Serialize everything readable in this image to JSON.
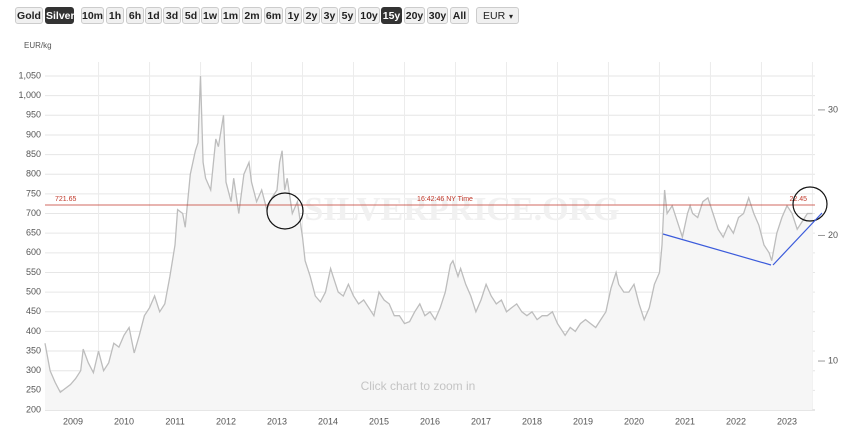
{
  "toolbar": {
    "metals": [
      "Gold",
      "Silver"
    ],
    "ranges": [
      "10m",
      "1h",
      "6h",
      "1d",
      "3d",
      "5d",
      "1w",
      "1m",
      "2m",
      "6m",
      "1y",
      "2y",
      "3y",
      "5y",
      "10y",
      "15y",
      "20y",
      "30y",
      "All"
    ],
    "currency": "EUR"
  },
  "chart_data": {
    "type": "line",
    "y_label": "EUR/kg",
    "watermark": "SILVERPRICE.ORG",
    "hint": "Click chart to zoom in",
    "price_line": {
      "value": 721.65,
      "y2_value": 22.45,
      "time": "16:42:46 NY Time",
      "color": "#c0392b"
    },
    "xlim": [
      2008.45,
      2023.55
    ],
    "xticks": [
      2009,
      2010,
      2011,
      2012,
      2013,
      2014,
      2015,
      2016,
      2017,
      2018,
      2019,
      2020,
      2021,
      2022,
      2023
    ],
    "ylim": [
      200,
      1050
    ],
    "yticks": [
      200,
      250,
      300,
      350,
      400,
      450,
      500,
      550,
      600,
      650,
      700,
      750,
      800,
      850,
      900,
      950,
      {
        "value": 1000,
        "label": "1,000"
      },
      {
        "value": 1050,
        "label": "1,050"
      }
    ],
    "y2lim": [
      6.1,
      32.7
    ],
    "y2ticks": [
      10,
      20,
      30
    ],
    "grid": true,
    "x": [
      2008.45,
      2008.55,
      2008.65,
      2008.75,
      2008.85,
      2008.95,
      2009.05,
      2009.15,
      2009.2,
      2009.3,
      2009.4,
      2009.5,
      2009.6,
      2009.7,
      2009.8,
      2009.9,
      2010.0,
      2010.1,
      2010.2,
      2010.3,
      2010.4,
      2010.5,
      2010.6,
      2010.7,
      2010.8,
      2010.9,
      2011.0,
      2011.05,
      2011.15,
      2011.2,
      2011.3,
      2011.4,
      2011.45,
      2011.5,
      2011.55,
      2011.6,
      2011.7,
      2011.8,
      2011.85,
      2011.95,
      2012.0,
      2012.1,
      2012.15,
      2012.25,
      2012.35,
      2012.45,
      2012.5,
      2012.6,
      2012.7,
      2012.8,
      2012.9,
      2013.0,
      2013.05,
      2013.1,
      2013.15,
      2013.2,
      2013.3,
      2013.4,
      2013.5,
      2013.55,
      2013.65,
      2013.75,
      2013.85,
      2013.95,
      2014.05,
      2014.1,
      2014.2,
      2014.3,
      2014.4,
      2014.5,
      2014.6,
      2014.7,
      2014.8,
      2014.9,
      2015.0,
      2015.1,
      2015.2,
      2015.3,
      2015.4,
      2015.5,
      2015.6,
      2015.7,
      2015.8,
      2015.9,
      2016.0,
      2016.1,
      2016.2,
      2016.3,
      2016.4,
      2016.45,
      2016.55,
      2016.6,
      2016.7,
      2016.8,
      2016.9,
      2017.0,
      2017.1,
      2017.2,
      2017.3,
      2017.4,
      2017.5,
      2017.6,
      2017.7,
      2017.8,
      2017.9,
      2018.0,
      2018.1,
      2018.2,
      2018.3,
      2018.4,
      2018.5,
      2018.6,
      2018.65,
      2018.75,
      2018.85,
      2018.95,
      2019.05,
      2019.15,
      2019.25,
      2019.35,
      2019.45,
      2019.55,
      2019.65,
      2019.7,
      2019.8,
      2019.9,
      2020.0,
      2020.1,
      2020.2,
      2020.3,
      2020.4,
      2020.5,
      2020.55,
      2020.6,
      2020.65,
      2020.75,
      2020.85,
      2020.95,
      2021.05,
      2021.1,
      2021.15,
      2021.25,
      2021.35,
      2021.45,
      2021.55,
      2021.65,
      2021.75,
      2021.85,
      2021.95,
      2022.05,
      2022.15,
      2022.25,
      2022.35,
      2022.45,
      2022.55,
      2022.65,
      2022.7,
      2022.8,
      2022.9,
      2023.0,
      2023.1,
      2023.2,
      2023.3,
      2023.4,
      2023.5
    ],
    "series": [
      {
        "color": "#bdbdbd",
        "fill": "#f6f6f6",
        "values": [
          370,
          300,
          270,
          245,
          255,
          265,
          280,
          300,
          355,
          320,
          295,
          350,
          300,
          320,
          370,
          360,
          390,
          410,
          345,
          390,
          440,
          460,
          490,
          450,
          470,
          540,
          620,
          710,
          700,
          665,
          800,
          860,
          880,
          1050,
          830,
          790,
          760,
          890,
          870,
          950,
          780,
          730,
          790,
          700,
          800,
          830,
          780,
          730,
          760,
          710,
          740,
          760,
          830,
          860,
          760,
          790,
          700,
          730,
          640,
          580,
          540,
          490,
          475,
          500,
          560,
          540,
          500,
          490,
          520,
          490,
          470,
          480,
          460,
          440,
          500,
          480,
          470,
          440,
          440,
          420,
          425,
          450,
          470,
          440,
          450,
          430,
          460,
          500,
          570,
          580,
          540,
          560,
          520,
          490,
          450,
          480,
          520,
          490,
          470,
          480,
          450,
          460,
          470,
          450,
          440,
          450,
          430,
          440,
          440,
          450,
          420,
          400,
          390,
          410,
          400,
          420,
          430,
          420,
          410,
          430,
          450,
          510,
          550,
          520,
          500,
          500,
          520,
          470,
          430,
          460,
          520,
          550,
          620,
          760,
          700,
          720,
          680,
          640,
          700,
          720,
          700,
          690,
          730,
          740,
          700,
          660,
          640,
          670,
          650,
          690,
          700,
          740,
          700,
          670,
          620,
          600,
          580,
          650,
          690,
          720,
          700,
          660,
          680,
          700,
          700
        ]
      }
    ]
  }
}
